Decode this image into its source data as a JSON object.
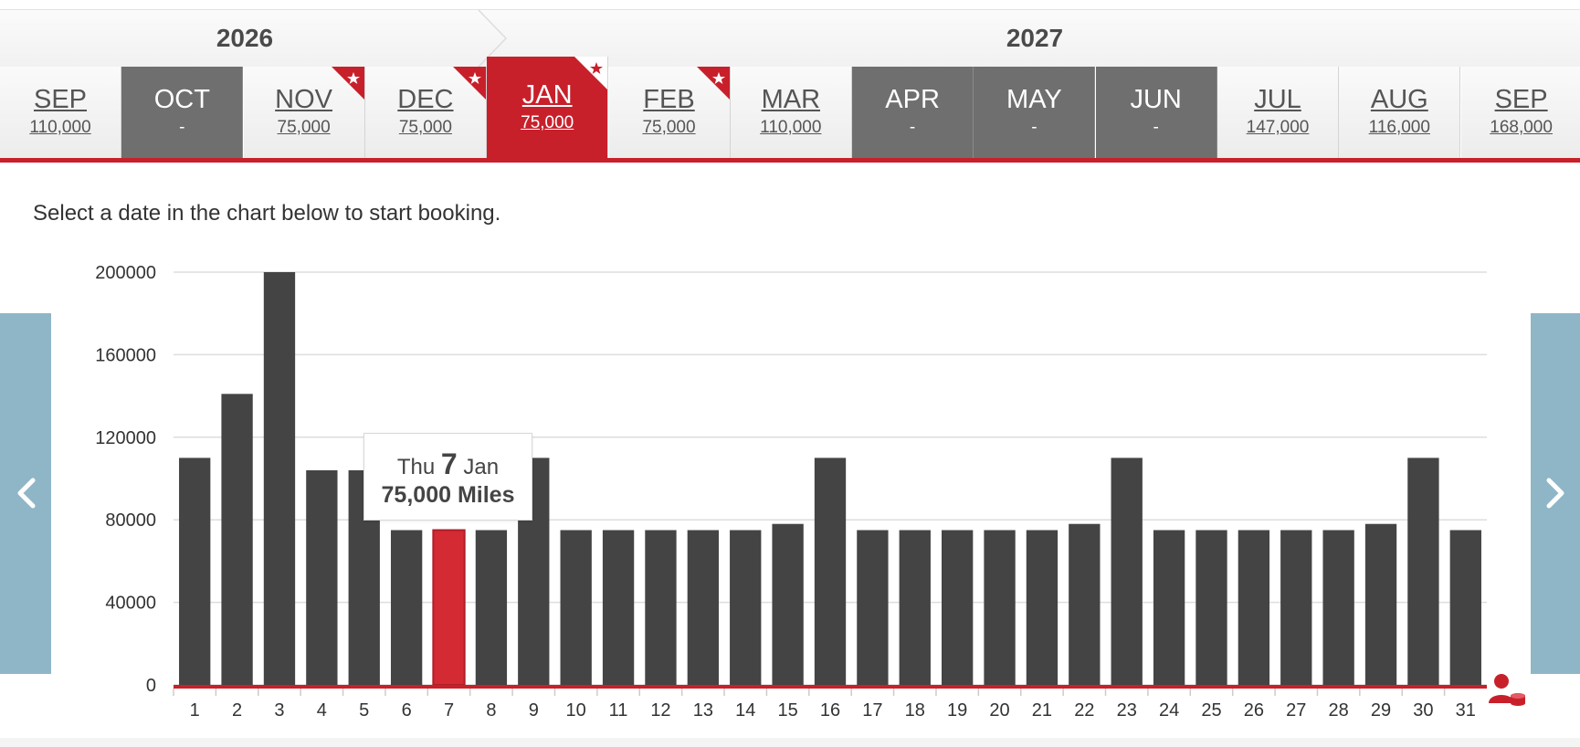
{
  "years": [
    {
      "label": "2026"
    },
    {
      "label": "2027"
    }
  ],
  "months": [
    {
      "name": "SEP",
      "price": "110,000",
      "state": "available",
      "star": false
    },
    {
      "name": "OCT",
      "price": "-",
      "state": "unavailable",
      "star": false
    },
    {
      "name": "NOV",
      "price": "75,000",
      "state": "available",
      "star": true
    },
    {
      "name": "DEC",
      "price": "75,000",
      "state": "available",
      "star": true
    },
    {
      "name": "JAN",
      "price": "75,000",
      "state": "selected",
      "star": true
    },
    {
      "name": "FEB",
      "price": "75,000",
      "state": "available",
      "star": true
    },
    {
      "name": "MAR",
      "price": "110,000",
      "state": "available",
      "star": false
    },
    {
      "name": "APR",
      "price": "-",
      "state": "unavailable",
      "star": false
    },
    {
      "name": "MAY",
      "price": "-",
      "state": "unavailable",
      "star": false
    },
    {
      "name": "JUN",
      "price": "-",
      "state": "unavailable",
      "star": false
    },
    {
      "name": "JUL",
      "price": "147,000",
      "state": "available",
      "star": false
    },
    {
      "name": "AUG",
      "price": "116,000",
      "state": "available",
      "star": false
    },
    {
      "name": "SEP",
      "price": "168,000",
      "state": "available",
      "star": false
    }
  ],
  "instruction": "Select a date in the chart below to start booking.",
  "tooltip": {
    "weekday": "Thu",
    "day": "7",
    "month": "Jan",
    "miles": "75,000 Miles"
  },
  "colors": {
    "accent": "#c8202b",
    "bar": "#444444",
    "bar_selected": "#d42a33",
    "unavailable": "#6f6f6f",
    "arrow_panel": "#8fb6c7"
  },
  "icons": {
    "left_arrow": "chevron-left-icon",
    "right_arrow": "chevron-right-icon",
    "month_badge": "star-ribbon-icon",
    "passenger": "passenger-miles-icon"
  },
  "chart_data": {
    "type": "bar",
    "title": "",
    "xlabel": "",
    "ylabel": "",
    "ylim": [
      0,
      200000
    ],
    "yticks": [
      0,
      40000,
      80000,
      120000,
      160000,
      200000
    ],
    "grid": true,
    "legend": "none",
    "selected_category": "7",
    "categories": [
      "1",
      "2",
      "3",
      "4",
      "5",
      "6",
      "7",
      "8",
      "9",
      "10",
      "11",
      "12",
      "13",
      "14",
      "15",
      "16",
      "17",
      "18",
      "19",
      "20",
      "21",
      "22",
      "23",
      "24",
      "25",
      "26",
      "27",
      "28",
      "29",
      "30",
      "31"
    ],
    "values": [
      110000,
      141000,
      200000,
      104000,
      104000,
      75000,
      75000,
      75000,
      110000,
      75000,
      75000,
      75000,
      75000,
      75000,
      78000,
      110000,
      75000,
      75000,
      75000,
      75000,
      75000,
      78000,
      110000,
      75000,
      75000,
      75000,
      75000,
      75000,
      78000,
      110000,
      75000
    ]
  }
}
